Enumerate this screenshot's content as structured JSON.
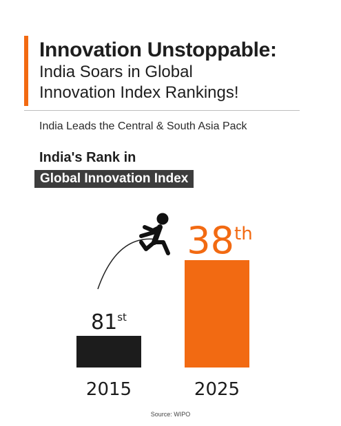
{
  "header": {
    "title_line1": "Innovation Unstoppable:",
    "title_line2": "India Soars in Global",
    "title_line3": "Innovation Index Rankings!",
    "subtitle": "India Leads the Central & South Asia Pack"
  },
  "chart_heading": {
    "line1": "India's Rank in",
    "line2": "Global Innovation Index"
  },
  "chart_data": {
    "type": "bar",
    "categories": [
      "2015",
      "2025"
    ],
    "values": [
      81,
      38
    ],
    "value_labels": [
      {
        "number": "81",
        "suffix": "st"
      },
      {
        "number": "38",
        "suffix": "th"
      }
    ],
    "colors": [
      "#1c1c1c",
      "#f26a12"
    ],
    "title": "India's Rank in Global Innovation Index",
    "xlabel": "",
    "ylabel": ""
  },
  "decor": {
    "jumper_icon": "jumping-person-icon",
    "arc": "jump-arc"
  },
  "footer": {
    "source": "Source: WIPO"
  }
}
